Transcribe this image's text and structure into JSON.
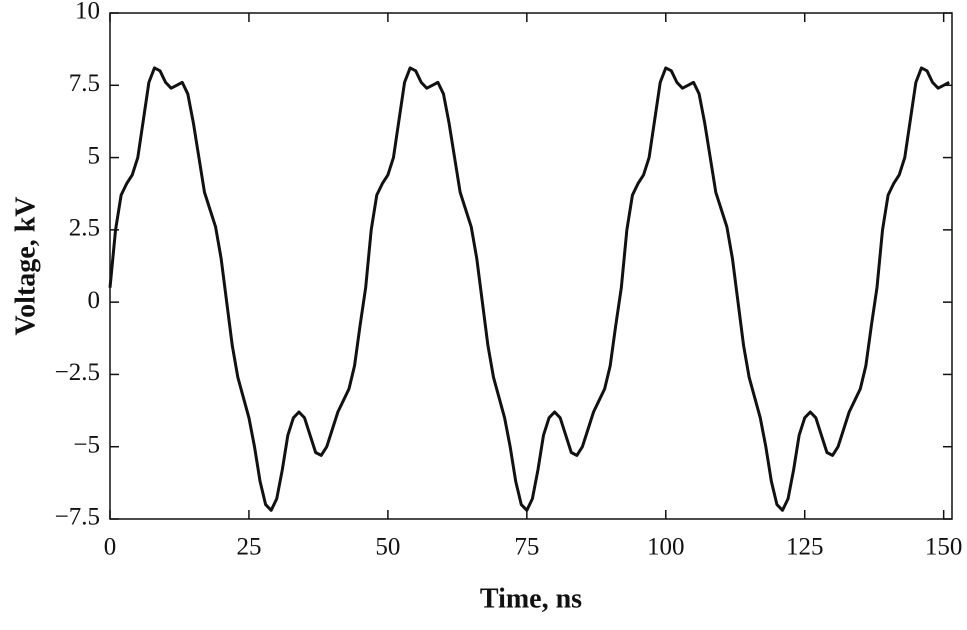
{
  "chart_data": {
    "type": "line",
    "x_label": "Time, ns",
    "y_label": "Voltage, kV",
    "xlim": [
      0,
      151.5
    ],
    "ylim": [
      -7.5,
      10
    ],
    "xticks": [
      0,
      25,
      50,
      75,
      100,
      125,
      150
    ],
    "yticks": [
      {
        "value": -7.5,
        "label": "−7.5"
      },
      {
        "value": -5,
        "label": "−5"
      },
      {
        "value": -2.5,
        "label": "−2.5"
      },
      0,
      2.5,
      5,
      7.5,
      10
    ],
    "x": [
      0,
      1,
      2,
      3,
      4,
      5,
      6,
      7,
      8,
      9,
      10,
      11,
      12,
      13,
      14,
      15,
      16,
      17,
      18,
      19,
      20,
      21,
      22,
      23,
      24,
      25,
      26,
      27,
      28,
      29,
      30,
      31,
      32,
      33,
      34,
      35,
      36,
      37,
      38,
      39,
      40,
      41,
      42,
      43,
      44,
      45,
      46,
      47,
      48,
      49,
      50,
      51,
      52,
      53,
      54,
      55,
      56,
      57,
      58,
      59,
      60,
      61,
      62,
      63,
      64,
      65,
      66,
      67,
      68,
      69,
      70,
      71,
      72,
      73,
      74,
      75,
      76,
      77,
      78,
      79,
      80,
      81,
      82,
      83,
      84,
      85,
      86,
      87,
      88,
      89,
      90,
      91,
      92,
      93,
      94,
      95,
      96,
      97,
      98,
      99,
      100,
      101,
      102,
      103,
      104,
      105,
      106,
      107,
      108,
      109,
      110,
      111,
      112,
      113,
      114,
      115,
      116,
      117,
      118,
      119,
      120,
      121,
      122,
      123,
      124,
      125,
      126,
      127,
      128,
      129,
      130,
      131,
      132,
      133,
      134,
      135,
      136,
      137,
      138,
      139,
      140,
      141,
      142,
      143,
      144,
      145,
      146,
      147,
      148,
      149,
      150,
      151
    ],
    "series": [
      {
        "color": "#111111",
        "values": [
          0.5,
          2.5,
          3.7,
          4.1,
          4.4,
          5.0,
          6.3,
          7.6,
          8.1,
          8.0,
          7.6,
          7.4,
          7.5,
          7.6,
          7.2,
          6.2,
          5.0,
          3.8,
          3.2,
          2.6,
          1.5,
          0,
          -1.5,
          -2.6,
          -3.3,
          -4.0,
          -5.0,
          -6.2,
          -7.0,
          -7.2,
          -6.8,
          -5.8,
          -4.6,
          -4.0,
          -3.8,
          -4.0,
          -4.6,
          -5.2,
          -5.3,
          -5.0,
          -4.4,
          -3.8,
          -3.4,
          -3.0,
          -2.2,
          -0.8,
          0.5,
          2.5,
          3.7,
          4.1,
          4.4,
          5.0,
          6.3,
          7.6,
          8.1,
          8.0,
          7.6,
          7.4,
          7.5,
          7.6,
          7.2,
          6.2,
          5.0,
          3.8,
          3.2,
          2.6,
          1.5,
          0,
          -1.5,
          -2.6,
          -3.3,
          -4.0,
          -5.0,
          -6.2,
          -7.0,
          -7.2,
          -6.8,
          -5.8,
          -4.6,
          -4.0,
          -3.8,
          -4.0,
          -4.6,
          -5.2,
          -5.3,
          -5.0,
          -4.4,
          -3.8,
          -3.4,
          -3.0,
          -2.2,
          -0.8,
          0.5,
          2.5,
          3.7,
          4.1,
          4.4,
          5.0,
          6.3,
          7.6,
          8.1,
          8.0,
          7.6,
          7.4,
          7.5,
          7.6,
          7.2,
          6.2,
          5.0,
          3.8,
          3.2,
          2.6,
          1.5,
          0,
          -1.5,
          -2.6,
          -3.3,
          -4.0,
          -5.0,
          -6.2,
          -7.0,
          -7.2,
          -6.8,
          -5.8,
          -4.6,
          -4.0,
          -3.8,
          -4.0,
          -4.6,
          -5.2,
          -5.3,
          -5.0,
          -4.4,
          -3.8,
          -3.4,
          -3.0,
          -2.2,
          -0.8,
          0.5,
          2.5,
          3.7,
          4.1,
          4.4,
          5.0,
          6.3,
          7.6,
          8.1,
          8.0,
          7.6,
          7.4,
          7.5,
          7.6
        ]
      }
    ]
  }
}
